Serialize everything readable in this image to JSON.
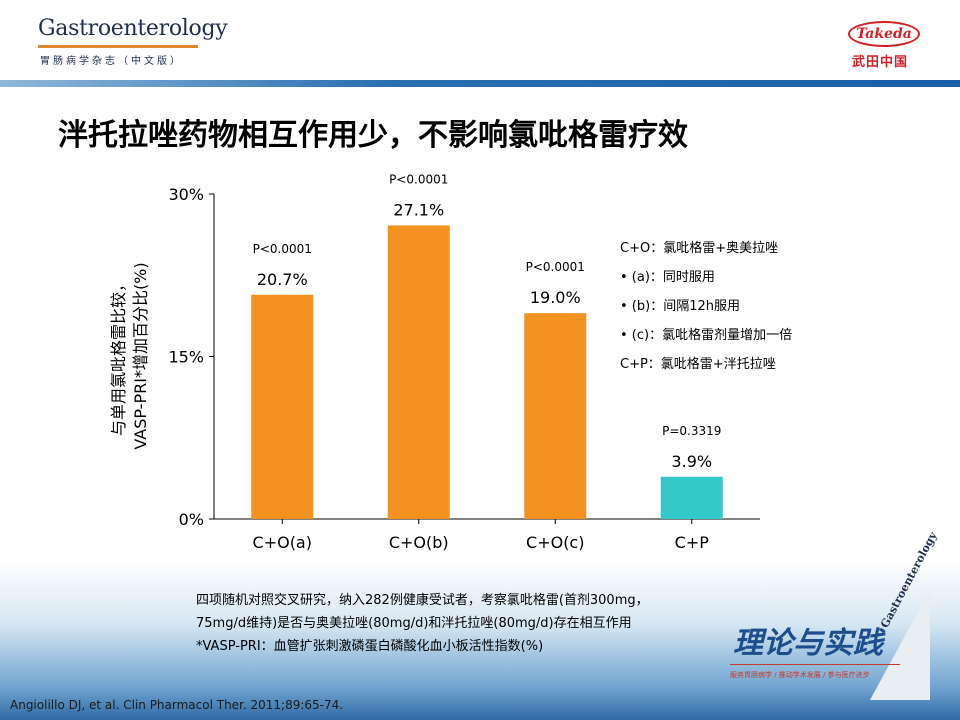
{
  "header": {
    "logo_title": "Gastroenterology",
    "logo_subtitle": "胃肠病学杂志（中文版）",
    "sponsor_logo": "Takeda",
    "sponsor_cn": "武田中国"
  },
  "slide_title": "泮托拉唑药物相互作用少，不影响氯吡格雷疗效",
  "chart_data": {
    "type": "bar",
    "ylabel": "与单用氯吡格雷比较，\nVASP-PRI*增加百分比(%)",
    "ylabel_lines": [
      "与单用氯吡格雷比较，",
      "VASP-PRI*增加百分比(%)"
    ],
    "ylim": [
      0,
      30
    ],
    "yticks": [
      "0%",
      "15%",
      "30%"
    ],
    "ytick_values": [
      0,
      15,
      30
    ],
    "grid": false,
    "categories": [
      "C+O(a)",
      "C+O(b)",
      "C+O(c)",
      "C+P"
    ],
    "values": [
      20.7,
      27.1,
      19.0,
      3.9
    ],
    "value_labels": [
      "20.7%",
      "27.1%",
      "19.0%",
      "3.9%"
    ],
    "p_values": [
      "P<0.0001",
      "P<0.0001",
      "P<0.0001",
      "P=0.3319"
    ],
    "colors": [
      "#f39221",
      "#f39221",
      "#f39221",
      "#33c9c8"
    ]
  },
  "legend_notes": [
    "C+O：氯吡格雷+奥美拉唑",
    "•  (a)：同时服用",
    "•  (b)：间隔12h服用",
    "•  (c)：氯吡格雷剂量增加一倍",
    "C+P：氯吡格雷+泮托拉唑"
  ],
  "method_text": [
    "四项随机对照交叉研究，纳入282例健康受试者，考察氯吡格雷(首剂300mg，",
    "75mg/d维持)是否与奥美拉唑(80mg/d)和泮托拉唑(80mg/d)存在相互作用",
    "*VASP-PRI：血管扩张刺激磷蛋白磷酸化血小板活性指数(%)"
  ],
  "footer": {
    "practice_logo": "理论与实践",
    "practice_sub": "服务胃肠病学 / 推动学术发展 / 参与医疗进步",
    "watermark": "Gastroenterology",
    "reference": "Angiolillo DJ, et al. Clin Pharmacol Ther. 2011;89:65-74."
  }
}
